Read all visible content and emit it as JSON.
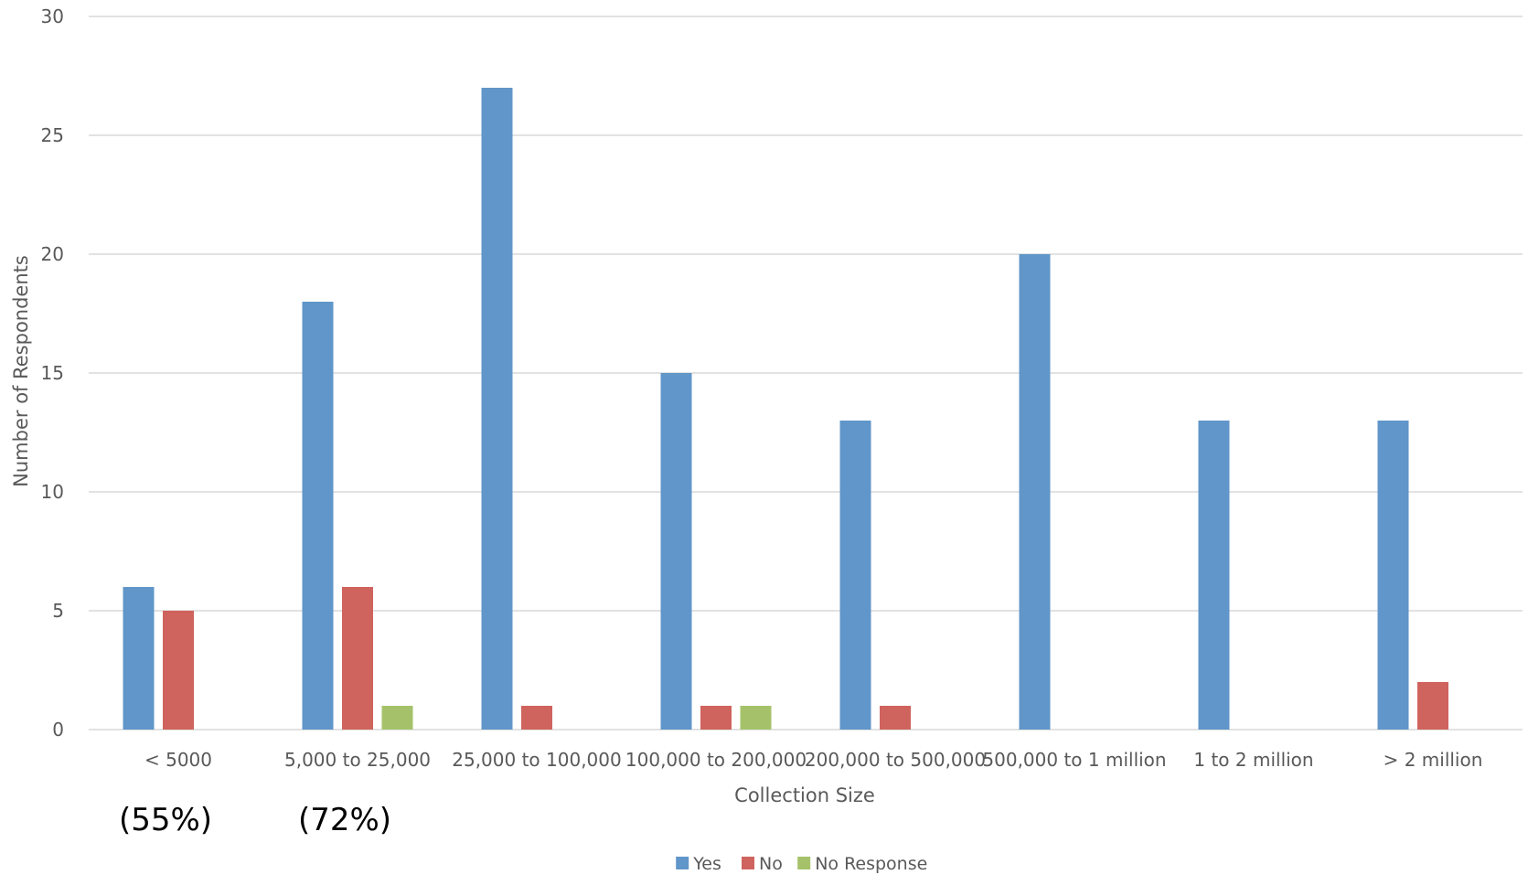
{
  "chart_data": {
    "type": "bar",
    "title": "",
    "xlabel": "Collection Size",
    "ylabel": "Number of Respondents",
    "ylim": [
      0,
      30
    ],
    "yticks": [
      0,
      5,
      10,
      15,
      20,
      25,
      30
    ],
    "grid": true,
    "legend_position": "bottom",
    "categories": [
      "< 5000",
      "5,000 to 25,000",
      "25,000 to 100,000",
      "100,000 to 200,000",
      "200,000 to 500,000",
      "500,000 to 1 million",
      "1 to 2 million",
      "> 2 million"
    ],
    "series": [
      {
        "name": "Yes",
        "color": "#6096C9",
        "values": [
          6,
          18,
          27,
          15,
          13,
          20,
          13,
          13
        ]
      },
      {
        "name": "No",
        "color": "#CF635D",
        "values": [
          5,
          6,
          1,
          1,
          1,
          0,
          0,
          2
        ]
      },
      {
        "name": "No Response",
        "color": "#A5C26A",
        "values": [
          0,
          1,
          0,
          1,
          0,
          0,
          0,
          0
        ]
      }
    ],
    "annotations": [
      {
        "text": "(55%)",
        "category_index": 0
      },
      {
        "text": "(72%)",
        "category_index": 1
      }
    ]
  },
  "colors": {
    "gridline": "#D9D9D9",
    "axis_line": "#D9D9D9",
    "text": "#595959",
    "annotation_text": "#000000"
  }
}
